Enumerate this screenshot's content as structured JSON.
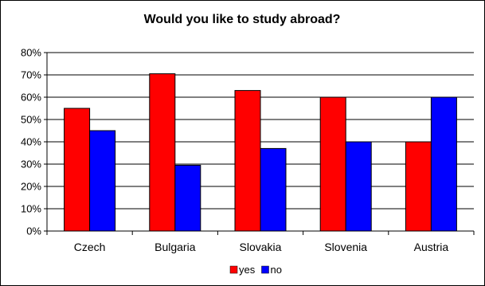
{
  "chart_data": {
    "type": "bar",
    "title": "Would you like to study abroad?",
    "xlabel": "",
    "ylabel": "",
    "categories": [
      "Czech",
      "Bulgaria",
      "Slovakia",
      "Slovenia",
      "Austria"
    ],
    "series": [
      {
        "name": "yes",
        "color": "#ff0000",
        "values": [
          55,
          70.5,
          63,
          60,
          40
        ]
      },
      {
        "name": "no",
        "color": "#0000ff",
        "values": [
          45,
          29.5,
          37,
          40,
          60
        ]
      }
    ],
    "ylim": [
      0,
      80
    ],
    "yticks": [
      0,
      10,
      20,
      30,
      40,
      50,
      60,
      70,
      80
    ],
    "ytick_labels": [
      "0%",
      "10%",
      "20%",
      "30%",
      "40%",
      "50%",
      "60%",
      "70%",
      "80%"
    ],
    "grid": true,
    "legend": "bottom"
  }
}
